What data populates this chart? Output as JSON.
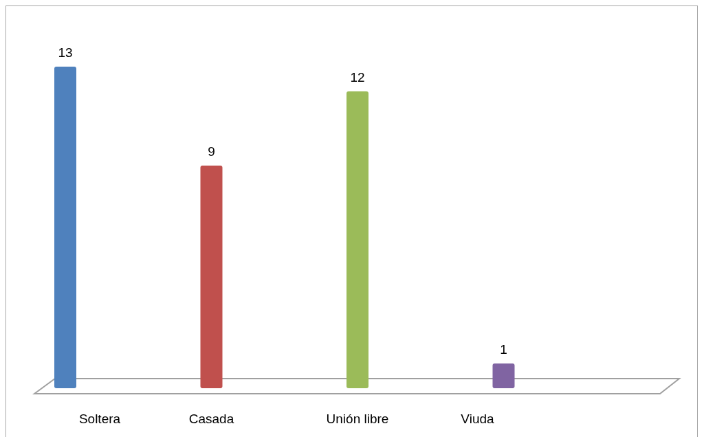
{
  "chart_data": {
    "type": "bar",
    "categories": [
      "Soltera",
      "Casada",
      "Unión libre",
      "Viuda"
    ],
    "values": [
      13,
      9,
      12,
      1
    ],
    "colors": [
      "#4f81bd",
      "#c0504d",
      "#9bbb59",
      "#8064a2"
    ],
    "data_labels": true
  }
}
